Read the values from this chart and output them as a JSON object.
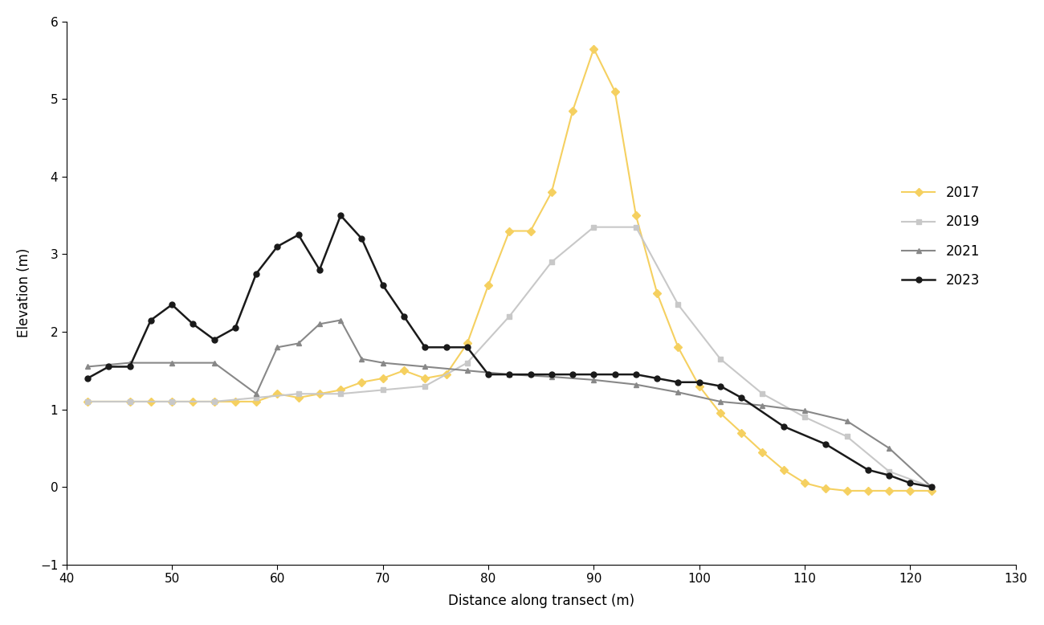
{
  "xlabel": "Distance along transect (m)",
  "ylabel": "Elevation (m)",
  "xlim": [
    40,
    130
  ],
  "ylim": [
    -1,
    6
  ],
  "xticks": [
    40,
    50,
    60,
    70,
    80,
    90,
    100,
    110,
    120,
    130
  ],
  "yticks": [
    -1,
    0,
    1,
    2,
    3,
    4,
    5,
    6
  ],
  "background_color": "#ffffff",
  "series": [
    {
      "label": "2017",
      "color": "#f5d060",
      "marker": "D",
      "markersize": 5,
      "linewidth": 1.5,
      "x": [
        42,
        46,
        48,
        50,
        52,
        54,
        56,
        58,
        60,
        62,
        64,
        66,
        68,
        70,
        72,
        74,
        76,
        78,
        80,
        82,
        84,
        86,
        88,
        90,
        92,
        94,
        96,
        98,
        100,
        102,
        104,
        106,
        108,
        110,
        112,
        114,
        116,
        118,
        120,
        122
      ],
      "y": [
        1.1,
        1.1,
        1.1,
        1.1,
        1.1,
        1.1,
        1.1,
        1.1,
        1.2,
        1.15,
        1.2,
        1.25,
        1.35,
        1.4,
        1.5,
        1.4,
        1.45,
        1.85,
        2.6,
        3.3,
        3.3,
        3.8,
        4.85,
        5.65,
        5.1,
        3.5,
        2.5,
        1.8,
        1.3,
        0.95,
        0.7,
        0.45,
        0.22,
        0.05,
        -0.02,
        -0.05,
        -0.05,
        -0.05,
        -0.05,
        -0.05
      ]
    },
    {
      "label": "2019",
      "color": "#c8c8c8",
      "marker": "s",
      "markersize": 5,
      "linewidth": 1.5,
      "x": [
        42,
        46,
        50,
        54,
        58,
        62,
        66,
        70,
        74,
        78,
        82,
        86,
        90,
        94,
        98,
        102,
        106,
        110,
        114,
        118,
        122
      ],
      "y": [
        1.1,
        1.1,
        1.1,
        1.1,
        1.15,
        1.2,
        1.2,
        1.25,
        1.3,
        1.6,
        2.2,
        2.9,
        3.35,
        3.35,
        2.35,
        1.65,
        1.2,
        0.9,
        0.65,
        0.2,
        0.0
      ]
    },
    {
      "label": "2021",
      "color": "#888888",
      "marker": "^",
      "markersize": 5,
      "linewidth": 1.5,
      "x": [
        42,
        46,
        50,
        54,
        58,
        60,
        62,
        64,
        66,
        68,
        70,
        74,
        78,
        82,
        86,
        90,
        94,
        98,
        102,
        106,
        110,
        114,
        118,
        122
      ],
      "y": [
        1.55,
        1.6,
        1.6,
        1.6,
        1.2,
        1.8,
        1.85,
        2.1,
        2.15,
        1.65,
        1.6,
        1.55,
        1.5,
        1.45,
        1.42,
        1.38,
        1.32,
        1.22,
        1.1,
        1.05,
        0.98,
        0.85,
        0.5,
        0.0
      ]
    },
    {
      "label": "2023",
      "color": "#1a1a1a",
      "marker": "o",
      "markersize": 5,
      "linewidth": 1.8,
      "x": [
        42,
        44,
        46,
        48,
        50,
        52,
        54,
        56,
        58,
        60,
        62,
        64,
        66,
        68,
        70,
        72,
        74,
        76,
        78,
        80,
        82,
        84,
        86,
        88,
        90,
        92,
        94,
        96,
        98,
        100,
        102,
        104,
        108,
        112,
        116,
        118,
        120,
        122
      ],
      "y": [
        1.4,
        1.55,
        1.55,
        2.15,
        2.35,
        2.1,
        1.9,
        2.05,
        2.75,
        3.1,
        3.25,
        2.8,
        3.5,
        3.2,
        2.6,
        2.2,
        1.8,
        1.8,
        1.8,
        1.45,
        1.45,
        1.45,
        1.45,
        1.45,
        1.45,
        1.45,
        1.45,
        1.4,
        1.35,
        1.35,
        1.3,
        1.15,
        0.78,
        0.55,
        0.22,
        0.15,
        0.05,
        0.0
      ]
    }
  ]
}
